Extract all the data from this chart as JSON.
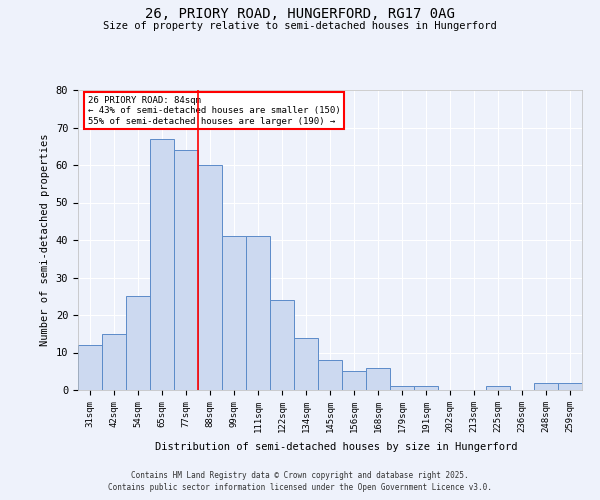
{
  "title1": "26, PRIORY ROAD, HUNGERFORD, RG17 0AG",
  "title2": "Size of property relative to semi-detached houses in Hungerford",
  "xlabel": "Distribution of semi-detached houses by size in Hungerford",
  "ylabel": "Number of semi-detached properties",
  "categories": [
    "31sqm",
    "42sqm",
    "54sqm",
    "65sqm",
    "77sqm",
    "88sqm",
    "99sqm",
    "111sqm",
    "122sqm",
    "134sqm",
    "145sqm",
    "156sqm",
    "168sqm",
    "179sqm",
    "191sqm",
    "202sqm",
    "213sqm",
    "225sqm",
    "236sqm",
    "248sqm",
    "259sqm"
  ],
  "values": [
    12,
    15,
    25,
    67,
    64,
    60,
    41,
    41,
    24,
    14,
    8,
    5,
    6,
    1,
    1,
    0,
    0,
    1,
    0,
    2,
    2
  ],
  "bar_color": "#ccd9f0",
  "bar_edge_color": "#5b8bc9",
  "red_line_x": 4.5,
  "ylim": [
    0,
    80
  ],
  "yticks": [
    0,
    10,
    20,
    30,
    40,
    50,
    60,
    70,
    80
  ],
  "annotation_title": "26 PRIORY ROAD: 84sqm",
  "annotation_line1": "← 43% of semi-detached houses are smaller (150)",
  "annotation_line2": "55% of semi-detached houses are larger (190) →",
  "footer1": "Contains HM Land Registry data © Crown copyright and database right 2025.",
  "footer2": "Contains public sector information licensed under the Open Government Licence v3.0.",
  "bg_color": "#eef2fb",
  "grid_color": "#ffffff"
}
